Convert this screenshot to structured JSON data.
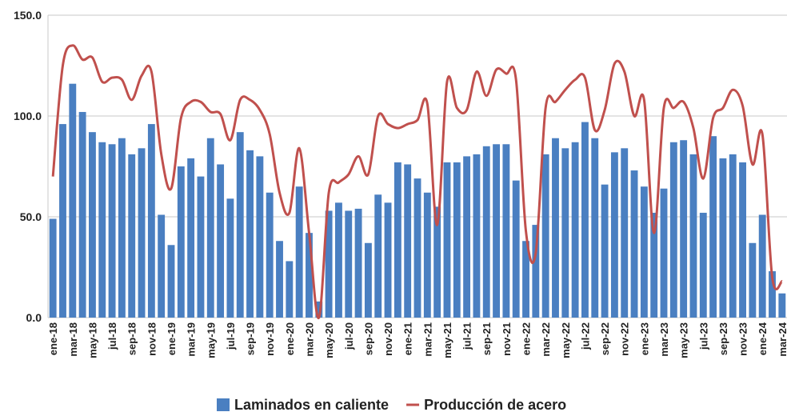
{
  "chart_data": {
    "type": "bar",
    "categories": [
      "ene-18",
      null,
      "mar-18",
      null,
      "may-18",
      null,
      "jul-18",
      null,
      "sep-18",
      null,
      "nov-18",
      null,
      "ene-19",
      null,
      "mar-19",
      null,
      "may-19",
      null,
      "jul-19",
      null,
      "sep-19",
      null,
      "nov-19",
      null,
      "ene-20",
      null,
      "mar-20",
      null,
      "may-20",
      null,
      "jul-20",
      null,
      "sep-20",
      null,
      "nov-20",
      null,
      "ene-21",
      null,
      "mar-21",
      null,
      "may-21",
      null,
      "jul-21",
      null,
      "sep-21",
      null,
      "nov-21",
      null,
      "ene-22",
      null,
      "mar-22",
      null,
      "may-22",
      null,
      "jul-22",
      null,
      "sep-22",
      null,
      "nov-22",
      null,
      "ene-23",
      null,
      "mar-23",
      null,
      "may-23",
      null,
      "jul-23",
      null,
      "sep-23",
      null,
      "nov-23",
      null,
      "ene-24",
      null,
      "mar-24"
    ],
    "series": [
      {
        "name": "Laminados en caliente",
        "color": "#4a7fc1",
        "type": "bar",
        "values": [
          49,
          96,
          116,
          102,
          92,
          87,
          86,
          89,
          81,
          84,
          96,
          51,
          36,
          75,
          79,
          70,
          89,
          76,
          59,
          92,
          83,
          80,
          62,
          38,
          28,
          65,
          42,
          8,
          53,
          57,
          53,
          54,
          37,
          61,
          57,
          77,
          76,
          69,
          62,
          55,
          77,
          77,
          80,
          81,
          85,
          86,
          86,
          68,
          38,
          46,
          81,
          89,
          84,
          87,
          97,
          89,
          66,
          82,
          84,
          73,
          65,
          52,
          64,
          87,
          88,
          81,
          52,
          90,
          79,
          81,
          77,
          37,
          51,
          23,
          12
        ]
      },
      {
        "name": "Producción de acero",
        "color": "#c0504d",
        "type": "line",
        "values": [
          70,
          125,
          135,
          128,
          129,
          117,
          119,
          118,
          108,
          120,
          122,
          81,
          64,
          99,
          107,
          107,
          102,
          101,
          88,
          108,
          108,
          103,
          91,
          62,
          52,
          84,
          42,
          0,
          62,
          67,
          71,
          80,
          71,
          100,
          96,
          94,
          96,
          98,
          106,
          46,
          117,
          104,
          103,
          122,
          110,
          123,
          121,
          118,
          43,
          32,
          104,
          107,
          113,
          118,
          119,
          93,
          103,
          126,
          122,
          100,
          108,
          42,
          104,
          104,
          107,
          94,
          69,
          99,
          104,
          113,
          105,
          76,
          91,
          20,
          18
        ]
      }
    ],
    "ylim": [
      0,
      150
    ],
    "yticks": [
      {
        "value": 0,
        "label": "0.0"
      },
      {
        "value": 50,
        "label": "50.0"
      },
      {
        "value": 100,
        "label": "100.0"
      },
      {
        "value": 150,
        "label": "150.0"
      }
    ],
    "grid": true,
    "legend": "bottom"
  }
}
